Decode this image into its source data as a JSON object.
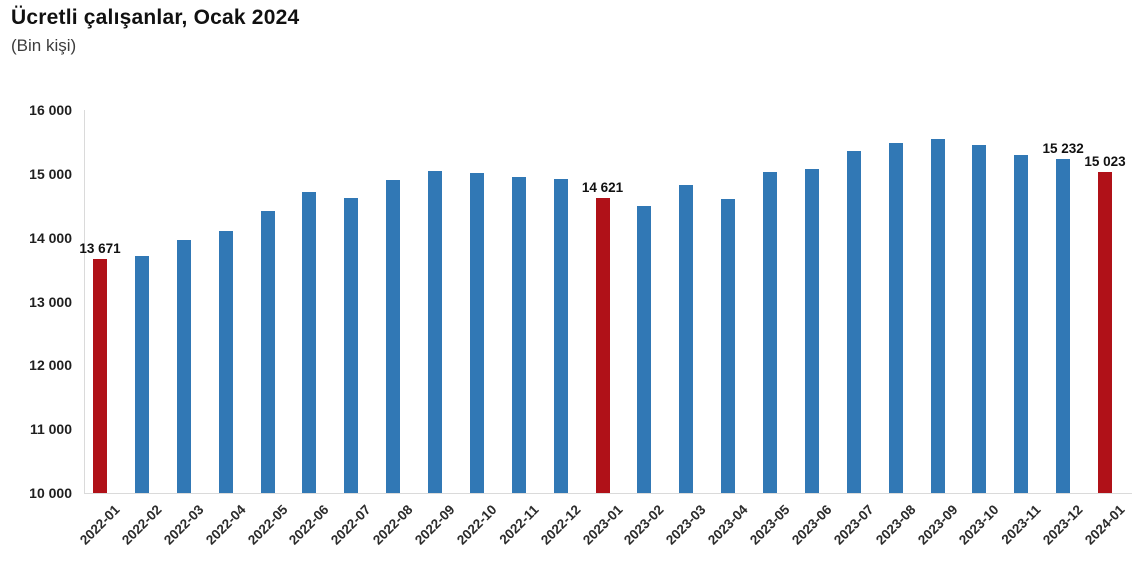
{
  "chart_data": {
    "type": "bar",
    "title": "Ücretli çalışanlar, Ocak 2024",
    "subtitle": "(Bin kişi)",
    "categories": [
      "2022-01",
      "2022-02",
      "2022-03",
      "2022-04",
      "2022-05",
      "2022-06",
      "2022-07",
      "2022-08",
      "2022-09",
      "2022-10",
      "2022-11",
      "2022-12",
      "2023-01",
      "2023-02",
      "2023-03",
      "2023-04",
      "2023-05",
      "2023-06",
      "2023-07",
      "2023-08",
      "2023-09",
      "2023-10",
      "2023-11",
      "2023-12",
      "2024-01"
    ],
    "values": [
      13671,
      13720,
      13960,
      14110,
      14420,
      14720,
      14630,
      14900,
      15040,
      15010,
      14950,
      14920,
      14621,
      14500,
      14830,
      14610,
      15030,
      15080,
      15360,
      15480,
      15550,
      15450,
      15290,
      15232,
      15023
    ],
    "bar_labels": {
      "0": "13 671",
      "12": "14 621",
      "23": "15 232",
      "24": "15 023"
    },
    "highlight_indices": [
      0,
      12,
      24
    ],
    "ylim": [
      10000,
      16000
    ],
    "ytick_step": 1000,
    "yticks": [
      {
        "value": 10000,
        "label": "10 000"
      },
      {
        "value": 11000,
        "label": "11 000"
      },
      {
        "value": 12000,
        "label": "12 000"
      },
      {
        "value": 13000,
        "label": "13 000"
      },
      {
        "value": 14000,
        "label": "14 000"
      },
      {
        "value": 15000,
        "label": "15 000"
      },
      {
        "value": 16000,
        "label": "16 000"
      }
    ],
    "grid": false,
    "legend": "none",
    "colors": {
      "bar": "#3178B5",
      "highlight": "#B01118",
      "axis": "#DADADA",
      "title_text": "#111111",
      "subtitle_text": "#3D3D3D",
      "tick_text": "#1F1F1F"
    }
  }
}
